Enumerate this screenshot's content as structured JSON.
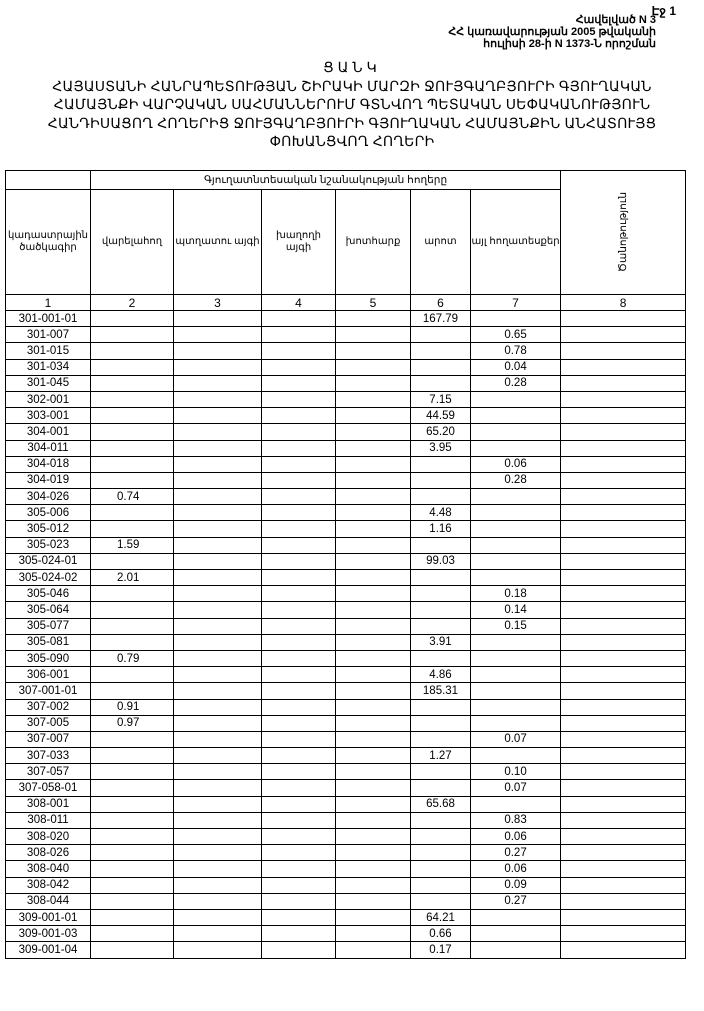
{
  "page": "Էջ 1",
  "annex": {
    "line1": "Հավելված N 3",
    "line2": "ՀՀ կառավարության 2005 թվականի",
    "line3": "հուլիսի 28-ի N 1373-Ն որոշման"
  },
  "title": {
    "word": "ՑԱՆԿ",
    "line1": "ՀԱՅԱՍՏԱՆԻ ՀԱՆՐԱՊԵՏՈՒԹՅԱՆ ՇԻՐԱԿԻ ՄԱՐԶԻ ՋՈՒՅԳԱՂԲՅՈՒՐԻ ԳՅՈՒՂԱԿԱՆ",
    "line2": "ՀԱՄԱՅՆՔԻ ՎԱՐՉԱԿԱՆ ՍԱՀՄԱՆՆԵՐՈՒՄ ԳՏՆՎՈՂ ՊԵՏԱԿԱՆ ՍԵՓԱԿԱՆՈՒԹՅՈՒՆ",
    "line3": "ՀԱՆԴԻՍԱՑՈՂ ՀՈՂԵՐԻՑ ՋՈՒՅԳԱՂԲՅՈՒՐԻ ԳՅՈՒՂԱԿԱՆ ՀԱՄԱՅՆՔԻՆ ԱՆՀԱՏՈՒՅՑ",
    "line4": "ՓՈԽԱՆՑՎՈՂ ՀՈՂԵՐԻ"
  },
  "table": {
    "group_header": "Գյուղատնտեսական նշանակության հողերը",
    "columns": [
      "կադաստրային ծածկագիր",
      "վարելահող",
      "պտղատու այգի",
      "խաղողի այգի",
      "խոտհարք",
      "արոտ",
      "այլ հողատեսքեր",
      "Ծանոթություն"
    ],
    "column_numbers": [
      "1",
      "2",
      "3",
      "4",
      "5",
      "6",
      "7",
      "8"
    ],
    "rows": [
      [
        "301-001-01",
        "",
        "",
        "",
        "",
        "167.79",
        "",
        ""
      ],
      [
        "301-007",
        "",
        "",
        "",
        "",
        "",
        "0.65",
        ""
      ],
      [
        "301-015",
        "",
        "",
        "",
        "",
        "",
        "0.78",
        ""
      ],
      [
        "301-034",
        "",
        "",
        "",
        "",
        "",
        "0.04",
        ""
      ],
      [
        "301-045",
        "",
        "",
        "",
        "",
        "",
        "0.28",
        ""
      ],
      [
        "302-001",
        "",
        "",
        "",
        "",
        "7.15",
        "",
        ""
      ],
      [
        "303-001",
        "",
        "",
        "",
        "",
        "44.59",
        "",
        ""
      ],
      [
        "304-001",
        "",
        "",
        "",
        "",
        "65.20",
        "",
        ""
      ],
      [
        "304-011",
        "",
        "",
        "",
        "",
        "3.95",
        "",
        ""
      ],
      [
        "304-018",
        "",
        "",
        "",
        "",
        "",
        "0.06",
        ""
      ],
      [
        "304-019",
        "",
        "",
        "",
        "",
        "",
        "0.28",
        ""
      ],
      [
        "304-026",
        "0.74",
        "",
        "",
        "",
        "",
        "",
        ""
      ],
      [
        "305-006",
        "",
        "",
        "",
        "",
        "4.48",
        "",
        ""
      ],
      [
        "305-012",
        "",
        "",
        "",
        "",
        "1.16",
        "",
        ""
      ],
      [
        "305-023",
        "1.59",
        "",
        "",
        "",
        "",
        "",
        ""
      ],
      [
        "305-024-01",
        "",
        "",
        "",
        "",
        "99.03",
        "",
        ""
      ],
      [
        "305-024-02",
        "2.01",
        "",
        "",
        "",
        "",
        "",
        ""
      ],
      [
        "305-046",
        "",
        "",
        "",
        "",
        "",
        "0.18",
        ""
      ],
      [
        "305-064",
        "",
        "",
        "",
        "",
        "",
        "0.14",
        ""
      ],
      [
        "305-077",
        "",
        "",
        "",
        "",
        "",
        "0.15",
        ""
      ],
      [
        "305-081",
        "",
        "",
        "",
        "",
        "3.91",
        "",
        ""
      ],
      [
        "305-090",
        "0.79",
        "",
        "",
        "",
        "",
        "",
        ""
      ],
      [
        "306-001",
        "",
        "",
        "",
        "",
        "4.86",
        "",
        ""
      ],
      [
        "307-001-01",
        "",
        "",
        "",
        "",
        "185.31",
        "",
        ""
      ],
      [
        "307-002",
        "0.91",
        "",
        "",
        "",
        "",
        "",
        ""
      ],
      [
        "307-005",
        "0.97",
        "",
        "",
        "",
        "",
        "",
        ""
      ],
      [
        "307-007",
        "",
        "",
        "",
        "",
        "",
        "0.07",
        ""
      ],
      [
        "307-033",
        "",
        "",
        "",
        "",
        "1.27",
        "",
        ""
      ],
      [
        "307-057",
        "",
        "",
        "",
        "",
        "",
        "0.10",
        ""
      ],
      [
        "307-058-01",
        "",
        "",
        "",
        "",
        "",
        "0.07",
        ""
      ],
      [
        "308-001",
        "",
        "",
        "",
        "",
        "65.68",
        "",
        ""
      ],
      [
        "308-011",
        "",
        "",
        "",
        "",
        "",
        "0.83",
        ""
      ],
      [
        "308-020",
        "",
        "",
        "",
        "",
        "",
        "0.06",
        ""
      ],
      [
        "308-026",
        "",
        "",
        "",
        "",
        "",
        "0.27",
        ""
      ],
      [
        "308-040",
        "",
        "",
        "",
        "",
        "",
        "0.06",
        ""
      ],
      [
        "308-042",
        "",
        "",
        "",
        "",
        "",
        "0.09",
        ""
      ],
      [
        "308-044",
        "",
        "",
        "",
        "",
        "",
        "0.27",
        ""
      ],
      [
        "309-001-01",
        "",
        "",
        "",
        "",
        "64.21",
        "",
        ""
      ],
      [
        "309-001-03",
        "",
        "",
        "",
        "",
        "0.66",
        "",
        ""
      ],
      [
        "309-001-04",
        "",
        "",
        "",
        "",
        "0.17",
        "",
        ""
      ]
    ]
  }
}
